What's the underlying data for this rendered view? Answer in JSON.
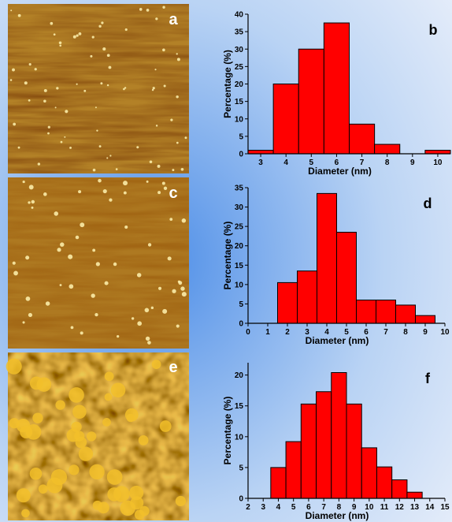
{
  "images": [
    {
      "label": "a"
    },
    {
      "label": "c"
    },
    {
      "label": "e"
    }
  ],
  "chart_data": [
    {
      "type": "histogram",
      "panel_label": "b",
      "xlabel": "Diameter (nm)",
      "ylabel": "Percentage (%)",
      "color": "#ff0000",
      "bins": [
        2.5,
        3.5,
        4.5,
        5.5,
        6.5,
        7.5,
        8.5,
        9.5,
        10.5
      ],
      "values": [
        1,
        20,
        30,
        37.5,
        8.5,
        2.7,
        0,
        1
      ],
      "xlim": [
        2.5,
        10.5
      ],
      "xticks": [
        3,
        4,
        5,
        6,
        7,
        8,
        9,
        10
      ],
      "ylim": [
        0,
        40
      ],
      "yticks": [
        0,
        5,
        10,
        15,
        20,
        25,
        30,
        35,
        40
      ]
    },
    {
      "type": "histogram",
      "panel_label": "d",
      "xlabel": "Diameter (nm)",
      "ylabel": "Percentage (%)",
      "color": "#ff0000",
      "bins": [
        1.5,
        2.5,
        3.5,
        4.5,
        5.5,
        6.5,
        7.5,
        8.5,
        9.5
      ],
      "values": [
        10.5,
        13.5,
        33.5,
        23.5,
        6,
        6,
        4.7,
        2
      ],
      "xlim": [
        0,
        10
      ],
      "xticks": [
        0,
        1,
        2,
        3,
        4,
        5,
        6,
        7,
        8,
        9,
        10
      ],
      "ylim": [
        0,
        35
      ],
      "yticks": [
        0,
        5,
        10,
        15,
        20,
        25,
        30,
        35
      ]
    },
    {
      "type": "histogram",
      "panel_label": "f",
      "xlabel": "Diameter (nm)",
      "ylabel": "Percentage (%)",
      "color": "#ff0000",
      "bins": [
        3.5,
        4.5,
        5.5,
        6.5,
        7.5,
        8.5,
        9.5,
        10.5,
        11.5,
        12.5,
        13.5
      ],
      "values": [
        5,
        9.2,
        15.3,
        17.3,
        20.4,
        15.3,
        8.2,
        5.1,
        3,
        1
      ],
      "xlim": [
        2,
        15
      ],
      "xticks": [
        2,
        3,
        4,
        5,
        6,
        7,
        8,
        9,
        10,
        11,
        12,
        13,
        14,
        15
      ],
      "ylim": [
        0,
        22
      ],
      "yticks": [
        0,
        5,
        10,
        15,
        20
      ]
    }
  ]
}
